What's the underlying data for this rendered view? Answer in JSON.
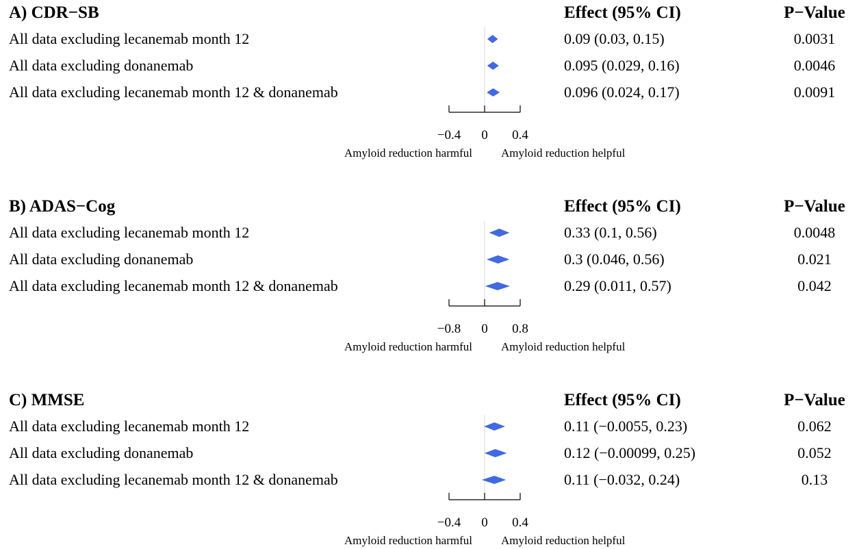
{
  "chart_data": [
    {
      "type": "forest",
      "title": "A) CDR−SB",
      "effect_header": "Effect (95% CI)",
      "pvalue_header": "P−Value",
      "xlim": [
        -0.4,
        0.4
      ],
      "xticks": [
        {
          "value": -0.4,
          "label": "−0.4"
        },
        {
          "value": 0,
          "label": "0"
        },
        {
          "value": 0.4,
          "label": "0.4"
        }
      ],
      "left_label": "Amyloid reduction harmful",
      "right_label": "Amyloid reduction helpful",
      "rows": [
        {
          "label": "All data excluding lecanemab month 12",
          "effect": 0.09,
          "lower": 0.03,
          "upper": 0.15,
          "ci_text": "0.09  (0.03, 0.15)",
          "p_text": "0.0031"
        },
        {
          "label": "All data excluding donanemab",
          "effect": 0.095,
          "lower": 0.029,
          "upper": 0.16,
          "ci_text": "0.095  (0.029, 0.16)",
          "p_text": "0.0046"
        },
        {
          "label": "All data excluding lecanemab month 12 & donanemab",
          "effect": 0.096,
          "lower": 0.024,
          "upper": 0.17,
          "ci_text": "0.096  (0.024, 0.17)",
          "p_text": "0.0091"
        }
      ]
    },
    {
      "type": "forest",
      "title": "B) ADAS−Cog",
      "effect_header": "Effect (95% CI)",
      "pvalue_header": "P−Value",
      "xlim": [
        -0.8,
        0.8
      ],
      "xticks": [
        {
          "value": -0.8,
          "label": "−0.8"
        },
        {
          "value": 0,
          "label": "0"
        },
        {
          "value": 0.8,
          "label": "0.8"
        }
      ],
      "left_label": "Amyloid reduction harmful",
      "right_label": "Amyloid reduction helpful",
      "rows": [
        {
          "label": "All data excluding lecanemab month 12",
          "effect": 0.33,
          "lower": 0.1,
          "upper": 0.56,
          "ci_text": "0.33  (0.1, 0.56)",
          "p_text": "0.0048"
        },
        {
          "label": "All data excluding donanemab",
          "effect": 0.3,
          "lower": 0.046,
          "upper": 0.56,
          "ci_text": "0.3  (0.046, 0.56)",
          "p_text": "0.021"
        },
        {
          "label": "All data excluding lecanemab month 12 & donanemab",
          "effect": 0.29,
          "lower": 0.011,
          "upper": 0.57,
          "ci_text": "0.29  (0.011, 0.57)",
          "p_text": "0.042"
        }
      ]
    },
    {
      "type": "forest",
      "title": "C) MMSE",
      "effect_header": "Effect (95% CI)",
      "pvalue_header": "P−Value",
      "xlim": [
        -0.4,
        0.4
      ],
      "xticks": [
        {
          "value": -0.4,
          "label": "−0.4"
        },
        {
          "value": 0,
          "label": "0"
        },
        {
          "value": 0.4,
          "label": "0.4"
        }
      ],
      "left_label": "Amyloid reduction harmful",
      "right_label": "Amyloid reduction helpful",
      "rows": [
        {
          "label": "All data excluding lecanemab month 12",
          "effect": 0.11,
          "lower": -0.0055,
          "upper": 0.23,
          "ci_text": "0.11  (−0.0055, 0.23)",
          "p_text": "0.062"
        },
        {
          "label": "All data excluding donanemab",
          "effect": 0.12,
          "lower": -0.00099,
          "upper": 0.25,
          "ci_text": "0.12  (−0.00099, 0.25)",
          "p_text": "0.052"
        },
        {
          "label": "All data excluding lecanemab month 12 & donanemab",
          "effect": 0.11,
          "lower": -0.032,
          "upper": 0.24,
          "ci_text": "0.11  (−0.032, 0.24)",
          "p_text": "0.13"
        }
      ]
    }
  ],
  "colors": {
    "diamond": "#4169e1",
    "line": "#000000"
  }
}
